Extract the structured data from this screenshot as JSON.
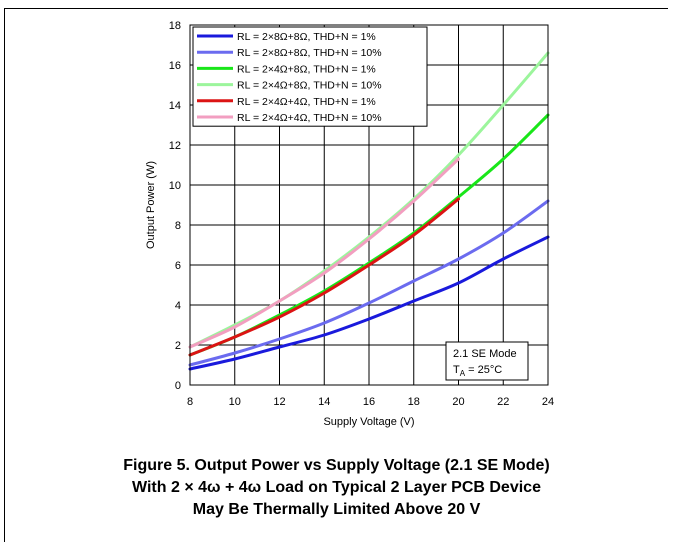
{
  "chart_data": {
    "type": "line",
    "title": "",
    "xlabel": "Supply Voltage (V)",
    "ylabel": "Output Power (W)",
    "xlim": [
      8,
      24
    ],
    "ylim": [
      0,
      18
    ],
    "x_ticks": [
      "8",
      "10",
      "12",
      "14",
      "16",
      "18",
      "20",
      "22",
      "24"
    ],
    "y_ticks": [
      "0",
      "2",
      "4",
      "6",
      "8",
      "10",
      "12",
      "14",
      "16",
      "18"
    ],
    "grid": true,
    "legend_position": "top-left",
    "series": [
      {
        "name": "RL = 2×8Ω+8Ω, THD+N = 1%",
        "color": "#1a1adc",
        "x": [
          8,
          10,
          12,
          14,
          16,
          18,
          20,
          22,
          24
        ],
        "values": [
          0.8,
          1.3,
          1.9,
          2.5,
          3.3,
          4.2,
          5.1,
          6.3,
          7.4
        ]
      },
      {
        "name": "RL = 2×8Ω+8Ω, THD+N = 10%",
        "color": "#6b6bef",
        "x": [
          8,
          10,
          12,
          14,
          16,
          18,
          20,
          22,
          24
        ],
        "values": [
          1.0,
          1.6,
          2.3,
          3.1,
          4.1,
          5.2,
          6.3,
          7.6,
          9.2
        ]
      },
      {
        "name": "RL = 2×4Ω+8Ω, THD+N = 1%",
        "color": "#19e619",
        "x": [
          8,
          10,
          12,
          14,
          16,
          18,
          20,
          22,
          24
        ],
        "values": [
          1.5,
          2.4,
          3.5,
          4.7,
          6.1,
          7.6,
          9.4,
          11.3,
          13.5
        ]
      },
      {
        "name": "RL = 2×4Ω+8Ω, THD+N = 10%",
        "color": "#9cf59c",
        "x": [
          8,
          10,
          12,
          14,
          16,
          18,
          20,
          22,
          24
        ],
        "values": [
          1.9,
          3.0,
          4.2,
          5.7,
          7.4,
          9.3,
          11.5,
          14.0,
          16.6
        ]
      },
      {
        "name": "RL = 2×4Ω+4Ω, THD+N = 1%",
        "color": "#dc1414",
        "x": [
          8,
          10,
          12,
          14,
          16,
          18,
          20
        ],
        "values": [
          1.5,
          2.4,
          3.4,
          4.6,
          6.0,
          7.5,
          9.3
        ]
      },
      {
        "name": "RL = 2×4Ω+4Ω, THD+N = 10%",
        "color": "#f29ec0",
        "x": [
          8,
          10,
          12,
          14,
          16,
          18,
          20
        ],
        "values": [
          1.9,
          2.9,
          4.2,
          5.6,
          7.3,
          9.2,
          11.3
        ]
      }
    ],
    "annotation": {
      "line1": "2.1 SE Mode",
      "line2_prefix": "T",
      "line2_sub": "A",
      "line2_suffix": " = 25°C"
    }
  },
  "caption": {
    "line1": "Figure 5. Output Power vs Supply Voltage (2.1 SE Mode)",
    "line2": "With 2 × 4ω + 4ω Load on Typical 2 Layer PCB Device",
    "line3": "May Be Thermally Limited Above 20 V"
  }
}
